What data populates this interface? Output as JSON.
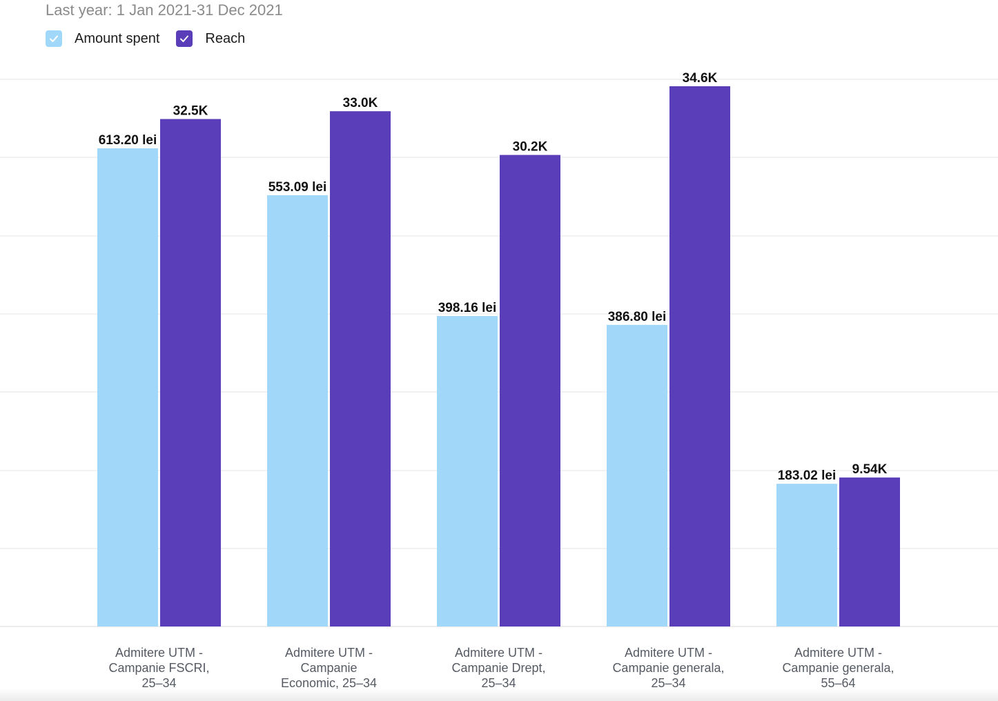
{
  "subtitle": "Last year: 1 Jan 2021-31 Dec 2021",
  "legend": [
    {
      "label": "Amount spent",
      "color": "#a1d8fa",
      "checked": true,
      "icon": "check-icon"
    },
    {
      "label": "Reach",
      "color": "#5a3db8",
      "checked": true,
      "icon": "check-icon"
    }
  ],
  "chart_data": {
    "type": "bar",
    "categories": [
      [
        "Admitere UTM -",
        "Campanie FSCRI,",
        "25–34"
      ],
      [
        "Admitere UTM -",
        "Campanie",
        "Economic, 25–34"
      ],
      [
        "Admitere UTM -",
        "Campanie Drept,",
        "25–34"
      ],
      [
        "Admitere UTM -",
        "Campanie generala,",
        "25–34"
      ],
      [
        "Admitere UTM -",
        "Campanie generala,",
        "55–64"
      ]
    ],
    "series": [
      {
        "name": "Amount spent",
        "color": "#a1d8fa",
        "values": [
          613.2,
          553.09,
          398.16,
          386.8,
          183.02
        ],
        "labels": [
          "613.20 lei",
          "553.09 lei",
          "398.16 lei",
          "386.80 lei",
          "183.02 lei"
        ]
      },
      {
        "name": "Reach",
        "color": "#5a3db8",
        "values": [
          32500,
          33000,
          30200,
          34600,
          9540
        ],
        "labels": [
          "32.5K",
          "33.0K",
          "30.2K",
          "34.6K",
          "9.54K"
        ]
      }
    ],
    "grid": true,
    "legend_position": "top-left"
  }
}
